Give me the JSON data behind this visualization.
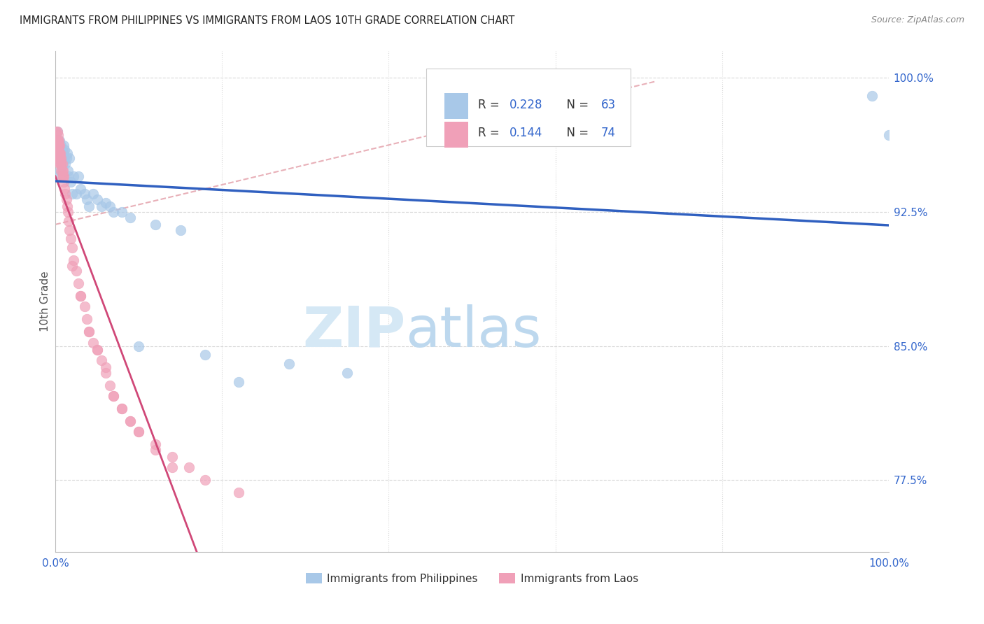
{
  "title": "IMMIGRANTS FROM PHILIPPINES VS IMMIGRANTS FROM LAOS 10TH GRADE CORRELATION CHART",
  "source": "Source: ZipAtlas.com",
  "ylabel": "10th Grade",
  "ytick_labels": [
    "100.0%",
    "92.5%",
    "85.0%",
    "77.5%"
  ],
  "ytick_values": [
    1.0,
    0.925,
    0.85,
    0.775
  ],
  "legend_r1": "0.228",
  "legend_n1": "63",
  "legend_r2": "0.144",
  "legend_n2": "74",
  "xlim": [
    0.0,
    1.0
  ],
  "ylim": [
    0.735,
    1.015
  ],
  "blue_color": "#A8C8E8",
  "pink_color": "#F0A0B8",
  "blue_line_color": "#3060C0",
  "pink_line_color": "#D04878",
  "dashed_line_color": "#D0A0A8",
  "title_color": "#222222",
  "tick_color": "#3366CC",
  "grid_color": "#D8D8D8",
  "philippines_x": [
    0.001,
    0.001,
    0.002,
    0.002,
    0.002,
    0.003,
    0.003,
    0.003,
    0.004,
    0.004,
    0.004,
    0.005,
    0.005,
    0.005,
    0.005,
    0.006,
    0.006,
    0.006,
    0.007,
    0.007,
    0.007,
    0.008,
    0.008,
    0.008,
    0.009,
    0.009,
    0.01,
    0.01,
    0.01,
    0.011,
    0.011,
    0.012,
    0.013,
    0.014,
    0.015,
    0.016,
    0.017,
    0.018,
    0.02,
    0.022,
    0.025,
    0.028,
    0.03,
    0.035,
    0.038,
    0.04,
    0.045,
    0.05,
    0.055,
    0.06,
    0.065,
    0.07,
    0.08,
    0.09,
    0.1,
    0.12,
    0.15,
    0.18,
    0.22,
    0.28,
    0.35,
    0.98,
    1.0
  ],
  "philippines_y": [
    0.945,
    0.96,
    0.96,
    0.955,
    0.97,
    0.958,
    0.965,
    0.955,
    0.96,
    0.955,
    0.958,
    0.955,
    0.96,
    0.955,
    0.965,
    0.948,
    0.955,
    0.96,
    0.96,
    0.955,
    0.962,
    0.955,
    0.96,
    0.958,
    0.952,
    0.958,
    0.955,
    0.958,
    0.962,
    0.955,
    0.96,
    0.952,
    0.955,
    0.958,
    0.948,
    0.945,
    0.955,
    0.942,
    0.935,
    0.945,
    0.935,
    0.945,
    0.938,
    0.935,
    0.932,
    0.928,
    0.935,
    0.932,
    0.928,
    0.93,
    0.928,
    0.925,
    0.925,
    0.922,
    0.85,
    0.918,
    0.915,
    0.845,
    0.83,
    0.84,
    0.835,
    0.99,
    0.968
  ],
  "laos_x": [
    0.001,
    0.001,
    0.001,
    0.002,
    0.002,
    0.002,
    0.002,
    0.003,
    0.003,
    0.003,
    0.003,
    0.003,
    0.004,
    0.004,
    0.004,
    0.004,
    0.005,
    0.005,
    0.005,
    0.005,
    0.006,
    0.006,
    0.006,
    0.007,
    0.007,
    0.007,
    0.008,
    0.008,
    0.008,
    0.009,
    0.009,
    0.01,
    0.01,
    0.011,
    0.012,
    0.013,
    0.014,
    0.015,
    0.016,
    0.017,
    0.018,
    0.02,
    0.022,
    0.025,
    0.028,
    0.03,
    0.035,
    0.038,
    0.04,
    0.045,
    0.05,
    0.055,
    0.06,
    0.065,
    0.07,
    0.08,
    0.09,
    0.1,
    0.12,
    0.14,
    0.16,
    0.18,
    0.22,
    0.02,
    0.03,
    0.04,
    0.05,
    0.06,
    0.07,
    0.08,
    0.09,
    0.1,
    0.12,
    0.14
  ],
  "laos_y": [
    0.97,
    0.965,
    0.96,
    0.97,
    0.965,
    0.96,
    0.955,
    0.968,
    0.965,
    0.962,
    0.958,
    0.955,
    0.965,
    0.962,
    0.958,
    0.955,
    0.962,
    0.958,
    0.955,
    0.952,
    0.958,
    0.955,
    0.952,
    0.955,
    0.952,
    0.948,
    0.952,
    0.948,
    0.945,
    0.948,
    0.945,
    0.945,
    0.942,
    0.938,
    0.935,
    0.932,
    0.928,
    0.925,
    0.92,
    0.915,
    0.91,
    0.905,
    0.898,
    0.892,
    0.885,
    0.878,
    0.872,
    0.865,
    0.858,
    0.852,
    0.848,
    0.842,
    0.835,
    0.828,
    0.822,
    0.815,
    0.808,
    0.802,
    0.795,
    0.788,
    0.782,
    0.775,
    0.768,
    0.895,
    0.878,
    0.858,
    0.848,
    0.838,
    0.822,
    0.815,
    0.808,
    0.802,
    0.792,
    0.782
  ]
}
